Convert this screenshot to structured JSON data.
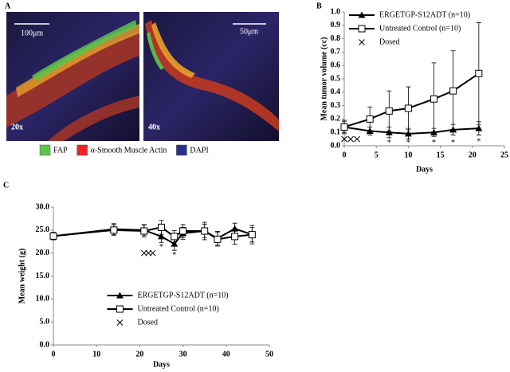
{
  "panel_a": {
    "label": "A",
    "images": [
      {
        "scale": "100μm",
        "magnification": "20x"
      },
      {
        "scale": "50μm",
        "magnification": "40x"
      }
    ],
    "legend": [
      {
        "name": "FAP",
        "color": "#5cc64a"
      },
      {
        "name": "α-Smooth Muscle Actin",
        "color": "#e8262a"
      },
      {
        "name": "DAPI",
        "color": "#2a2f8e"
      }
    ]
  },
  "chart_data": [
    {
      "type": "line",
      "label": "B",
      "xlabel": "Days",
      "ylabel": "Mean tumor volume (cc)",
      "xlim": [
        0,
        25
      ],
      "xticks": [
        0,
        5,
        10,
        15,
        20,
        25
      ],
      "ylim": [
        0,
        1
      ],
      "yticks": [
        {
          "value": 0,
          "label": "0.0"
        },
        0.1,
        0.2,
        0.3,
        0.4,
        0.5,
        0.6,
        0.7,
        0.8,
        0.9,
        {
          "value": 1,
          "label": "1.0"
        }
      ],
      "legend": "upper left",
      "series": [
        {
          "name": "ERGETGP-S12ADT (n=10)",
          "color": "#000000",
          "marker": "triangle",
          "x": [
            0,
            4,
            7,
            10,
            14,
            17,
            21
          ],
          "values": [
            0.14,
            0.11,
            0.1,
            0.09,
            0.1,
            0.12,
            0.13
          ],
          "errors": [
            0.04,
            0.03,
            0.04,
            0.04,
            0.03,
            0.04,
            0.05
          ]
        },
        {
          "name": "Untreated Control (n=10)",
          "color": "#000000",
          "marker": "square",
          "x": [
            0,
            4,
            7,
            10,
            14,
            17,
            21
          ],
          "values": [
            0.14,
            0.2,
            0.26,
            0.28,
            0.35,
            0.41,
            0.54
          ],
          "errors": [
            0.05,
            0.09,
            0.15,
            0.16,
            0.27,
            0.3,
            0.38
          ]
        },
        {
          "name": "Dosed",
          "color": "#000000",
          "marker": "x",
          "x": [
            0,
            1,
            2
          ],
          "values": [
            0.05,
            0.05,
            0.05
          ]
        }
      ],
      "annotations": [
        {
          "x": 7,
          "y": 0.02,
          "text": "*"
        },
        {
          "x": 10,
          "y": 0.02,
          "text": "*"
        },
        {
          "x": 14,
          "y": 0.02,
          "text": "*"
        },
        {
          "x": 17,
          "y": 0.02,
          "text": "*"
        },
        {
          "x": 21,
          "y": 0.03,
          "text": "*"
        }
      ]
    },
    {
      "type": "line",
      "label": "C",
      "xlabel": "Days",
      "ylabel": "Mean weight (g)",
      "xlim": [
        0,
        50
      ],
      "xticks": [
        0,
        10,
        20,
        30,
        40,
        50
      ],
      "ylim": [
        0,
        30
      ],
      "yticks": [
        {
          "value": 0,
          "label": "0.0"
        },
        {
          "value": 5,
          "label": "5.0"
        },
        {
          "value": 10,
          "label": "10.0"
        },
        {
          "value": 15,
          "label": "15.0"
        },
        {
          "value": 20,
          "label": "20.0"
        },
        {
          "value": 25,
          "label": "25.0"
        },
        {
          "value": 30,
          "label": "30.0"
        }
      ],
      "legend": "lower center",
      "series": [
        {
          "name": "ERGETGP-S12ADT (n=10)",
          "color": "#000000",
          "marker": "triangle",
          "x": [
            0,
            14,
            21,
            25,
            28,
            30,
            35,
            38,
            42,
            46
          ],
          "values": [
            23.7,
            25.2,
            25,
            23.6,
            22,
            24.3,
            24.8,
            23.2,
            25.3,
            24
          ],
          "errors": [
            0.8,
            1.2,
            1.2,
            1.3,
            1.4,
            1.3,
            1.5,
            1.5,
            1.2,
            1.6
          ]
        },
        {
          "name": "Untreated Control (n=10)",
          "color": "#000000",
          "marker": "square",
          "x": [
            0,
            14,
            21,
            25,
            28,
            30,
            35,
            38,
            42,
            46
          ],
          "values": [
            23.7,
            25,
            24.8,
            25.6,
            23.6,
            24.8,
            24.8,
            23,
            23.6,
            24
          ],
          "errors": [
            0.8,
            1.2,
            1.3,
            1.5,
            1.3,
            1.4,
            1.9,
            1.5,
            1.7,
            2
          ]
        },
        {
          "name": "Dosed",
          "color": "#000000",
          "marker": "x",
          "x": [
            21,
            22,
            23
          ],
          "values": [
            20,
            20,
            20
          ]
        }
      ],
      "annotations": [
        {
          "x": 25,
          "y": 21.2,
          "text": "*"
        },
        {
          "x": 28,
          "y": 19.5,
          "text": "*"
        }
      ]
    }
  ]
}
